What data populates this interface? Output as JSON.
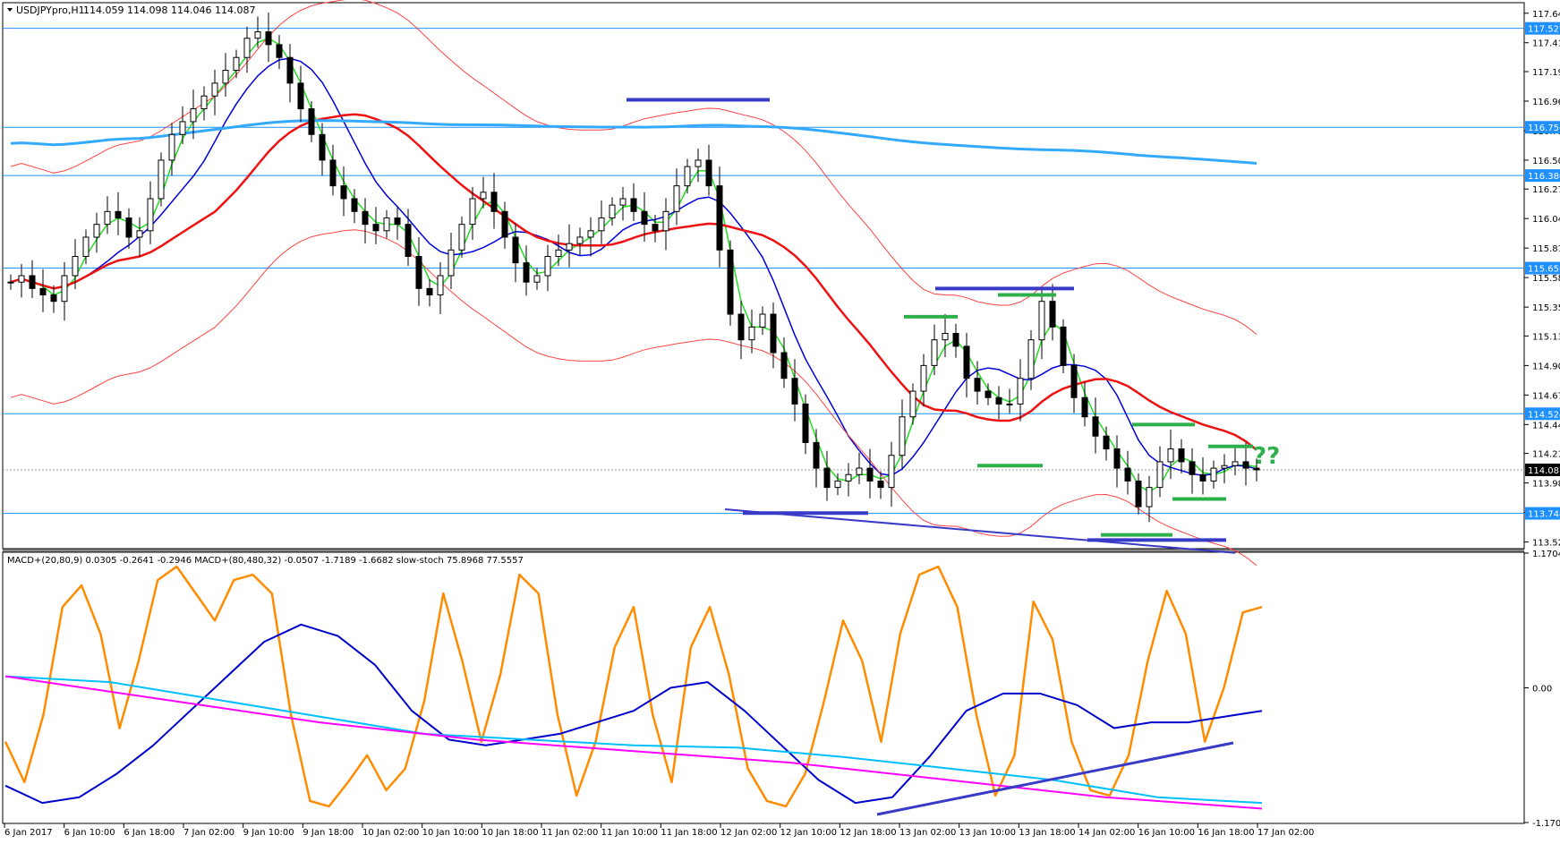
{
  "chart_data": [
    {
      "type": "candlestick",
      "title": "USDJPYpro,H1",
      "ohlc_header": "114.059 114.098 114.046 114.087",
      "y_ticks": [
        "117.645",
        "117.415",
        "117.190",
        "116.960",
        "116.730",
        "116.500",
        "116.275",
        "116.045",
        "115.815",
        "115.585",
        "115.355",
        "115.130",
        "114.900",
        "114.670",
        "114.440",
        "114.215",
        "113.985",
        "113.755",
        "113.525"
      ],
      "price_labels": [
        {
          "text": "117.527",
          "value": 117.527,
          "color": "#1e90ff"
        },
        {
          "text": "116.756",
          "value": 116.756,
          "color": "#1e90ff"
        },
        {
          "text": "116.380",
          "value": 116.38,
          "color": "#1e90ff"
        },
        {
          "text": "115.659",
          "value": 115.659,
          "color": "#1e90ff"
        },
        {
          "text": "114.524",
          "value": 114.524,
          "color": "#1e90ff"
        },
        {
          "text": "114.087",
          "value": 114.087,
          "color": "#000000"
        },
        {
          "text": "113.748",
          "value": 113.748,
          "color": "#1e90ff"
        }
      ],
      "ylim": [
        113.48,
        117.72
      ],
      "x_labels": [
        "6 Jan 2017",
        "6 Jan 10:00",
        "6 Jan 18:00",
        "7 Jan 02:00",
        "9 Jan 10:00",
        "9 Jan 18:00",
        "10 Jan 02:00",
        "10 Jan 10:00",
        "10 Jan 18:00",
        "11 Jan 02:00",
        "11 Jan 10:00",
        "11 Jan 18:00",
        "12 Jan 02:00",
        "12 Jan 10:00",
        "12 Jan 18:00",
        "13 Jan 02:00",
        "13 Jan 10:00",
        "13 Jan 18:00",
        "14 Jan 02:00",
        "16 Jan 10:00",
        "16 Jan 18:00",
        "17 Jan 02:00"
      ],
      "close_series": [
        115.55,
        115.6,
        115.5,
        115.45,
        115.4,
        115.6,
        115.75,
        115.9,
        116.0,
        116.1,
        116.05,
        115.9,
        115.95,
        116.2,
        116.5,
        116.7,
        116.8,
        116.9,
        117.0,
        117.1,
        117.2,
        117.3,
        117.45,
        117.5,
        117.4,
        117.3,
        117.1,
        116.9,
        116.7,
        116.5,
        116.3,
        116.2,
        116.1,
        116.0,
        115.95,
        116.05,
        116.0,
        115.75,
        115.5,
        115.45,
        115.6,
        115.8,
        116.0,
        116.2,
        116.25,
        116.1,
        115.9,
        115.7,
        115.55,
        115.6,
        115.75,
        115.8,
        115.85,
        115.9,
        115.95,
        116.05,
        116.15,
        116.2,
        116.1,
        116.0,
        115.95,
        116.1,
        116.3,
        116.45,
        116.5,
        116.3,
        115.8,
        115.3,
        115.1,
        115.2,
        115.3,
        115.0,
        114.8,
        114.6,
        114.3,
        114.1,
        113.95,
        114.0,
        114.05,
        114.1,
        114.0,
        113.95,
        114.2,
        114.5,
        114.7,
        114.9,
        115.1,
        115.15,
        115.05,
        114.8,
        114.7,
        114.65,
        114.6,
        114.6,
        114.8,
        115.1,
        115.4,
        115.2,
        114.9,
        114.65,
        114.5,
        114.35,
        114.25,
        114.1,
        114.0,
        113.8,
        113.95,
        114.15,
        114.25,
        114.15,
        114.05,
        114.0,
        114.1,
        114.12,
        114.15,
        114.1,
        114.087
      ],
      "h_lines": [
        117.527,
        116.756,
        116.38,
        115.659,
        114.524,
        113.748
      ],
      "annotation": "??"
    },
    {
      "type": "line",
      "title": "MACD+(20,80,9) 0.0305 -0.2641 -0.2946  MACD+(80,480,32) -0.0507 -1.7189 -1.6682  slow-stoch 75.8968 77.5557",
      "y_ticks": [
        "1.1704",
        "0.00",
        "-1.1704"
      ],
      "ylim": [
        -1.1704,
        1.1704
      ],
      "series": [
        {
          "values": [
            30,
            15,
            40,
            80,
            88,
            70,
            35,
            60,
            90,
            95,
            85,
            75,
            90,
            92,
            85,
            40,
            8,
            6,
            15,
            25,
            12,
            20,
            45,
            85,
            60,
            30,
            55,
            92,
            85,
            40,
            10,
            30,
            65,
            80,
            40,
            15,
            65,
            80,
            55,
            20,
            8,
            6,
            18,
            45,
            75,
            60,
            30,
            70,
            92,
            95,
            80,
            40,
            10,
            25,
            82,
            68,
            30,
            12,
            10,
            25,
            60,
            86,
            70,
            30,
            50,
            78,
            80
          ],
          "color": "#ff8c00"
        },
        {
          "values": [
            -0.85,
            -1.0,
            -0.95,
            -0.75,
            -0.5,
            -0.2,
            0.1,
            0.4,
            0.55,
            0.45,
            0.2,
            -0.2,
            -0.45,
            -0.5,
            -0.45,
            -0.4,
            -0.3,
            -0.2,
            0.0,
            0.05,
            -0.2,
            -0.5,
            -0.8,
            -1.0,
            -0.95,
            -0.6,
            -0.2,
            -0.05,
            -0.05,
            -0.15,
            -0.35,
            -0.3,
            -0.3,
            -0.25,
            -0.2
          ],
          "color": "#0000cd"
        },
        {
          "values": [
            0.1,
            0.05,
            -0.1,
            -0.25,
            -0.4,
            -0.45,
            -0.5,
            -0.52,
            -0.6,
            -0.7,
            -0.8,
            -0.95,
            -1.0
          ],
          "color": "#00bfff"
        },
        {
          "values": [
            0.1,
            -0.1,
            -0.3,
            -0.45,
            -0.55,
            -0.65,
            -0.8,
            -0.95,
            -1.05
          ],
          "color": "#ff00ff"
        }
      ]
    }
  ]
}
